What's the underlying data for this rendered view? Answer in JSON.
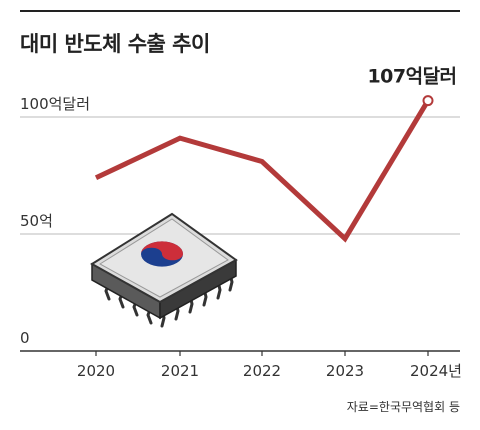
{
  "title": "대미 반도체 수출 추이",
  "source": "자료=한국무역협회 등",
  "colors": {
    "line": "#b33a3a",
    "grid": "#bbbbbb",
    "axis": "#333333"
  },
  "illustration": "semiconductor-chip-with-taegeuk-icon",
  "chart_data": {
    "type": "line",
    "title": "대미 반도체 수출 추이",
    "categories": [
      "2020",
      "2021",
      "2022",
      "2023",
      "2024년"
    ],
    "series": [
      {
        "values": [
          74,
          91,
          81,
          48,
          107
        ]
      }
    ],
    "yticks": [
      {
        "value": 0,
        "label": "0"
      },
      {
        "value": 50,
        "label": "50억"
      },
      {
        "value": 100,
        "label": "100억달러"
      }
    ],
    "ylim": [
      0,
      120
    ],
    "grid": true,
    "annotation": {
      "index": 4,
      "text": "107억달러"
    }
  }
}
